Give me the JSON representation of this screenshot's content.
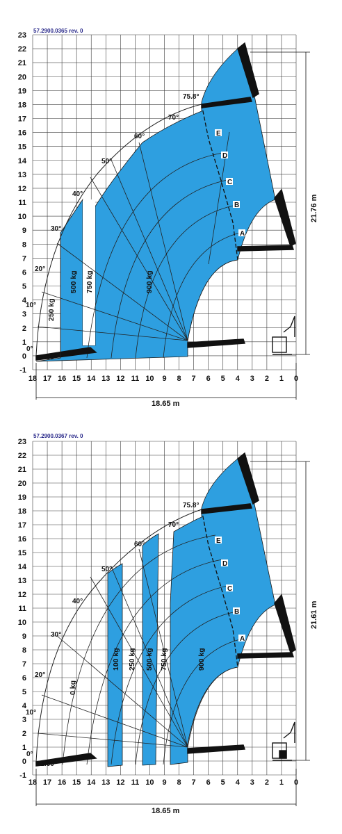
{
  "colors": {
    "envelope": "#2e9fe0",
    "grid": "#3a3a3a",
    "arc": "#222222",
    "ref": "#2a2a8a"
  },
  "diagrams": [
    {
      "ref": "57.2900.0365  rev. 0",
      "height_label": "21.76 m",
      "reach_label": "18.65 m",
      "x_ticks": [
        "18",
        "17",
        "16",
        "15",
        "14",
        "13",
        "12",
        "11",
        "10",
        "9",
        "8",
        "7",
        "6",
        "5",
        "4",
        "3",
        "2",
        "1",
        "0"
      ],
      "y_ticks": [
        "23",
        "22",
        "21",
        "20",
        "19",
        "18",
        "17",
        "16",
        "15",
        "14",
        "13",
        "12",
        "11",
        "10",
        "9",
        "8",
        "7",
        "6",
        "5",
        "4",
        "3",
        "2",
        "1",
        "0",
        "-1"
      ],
      "angles": [
        "75.8°",
        "70°",
        "60°",
        "50°",
        "40°",
        "30°",
        "20°",
        "10°",
        "0°",
        "-2.60°"
      ],
      "loads": [
        "250 kg",
        "500 kg",
        "750 kg",
        "900 kg"
      ],
      "extensions": [
        "A",
        "B",
        "C",
        "D",
        "E"
      ]
    },
    {
      "ref": "57.2900.0367  rev. 0",
      "height_label": "21.61 m",
      "reach_label": "18.65 m",
      "x_ticks": [
        "18",
        "17",
        "16",
        "15",
        "14",
        "13",
        "12",
        "11",
        "10",
        "9",
        "8",
        "7",
        "6",
        "5",
        "4",
        "3",
        "2",
        "1",
        "0"
      ],
      "y_ticks": [
        "23",
        "22",
        "21",
        "20",
        "19",
        "18",
        "17",
        "16",
        "15",
        "14",
        "13",
        "12",
        "11",
        "10",
        "9",
        "8",
        "7",
        "6",
        "5",
        "4",
        "3",
        "2",
        "1",
        "0",
        "-1"
      ],
      "angles": [
        "75.8°",
        "70°",
        "60°",
        "50°",
        "40°",
        "30°",
        "20°",
        "10°",
        "0°",
        "-2.60°"
      ],
      "loads": [
        "0 kg",
        "100 kg",
        "250 kg",
        "500 kg",
        "750 kg",
        "900 kg"
      ],
      "extensions": [
        "A",
        "B",
        "C",
        "D",
        "E"
      ]
    }
  ]
}
